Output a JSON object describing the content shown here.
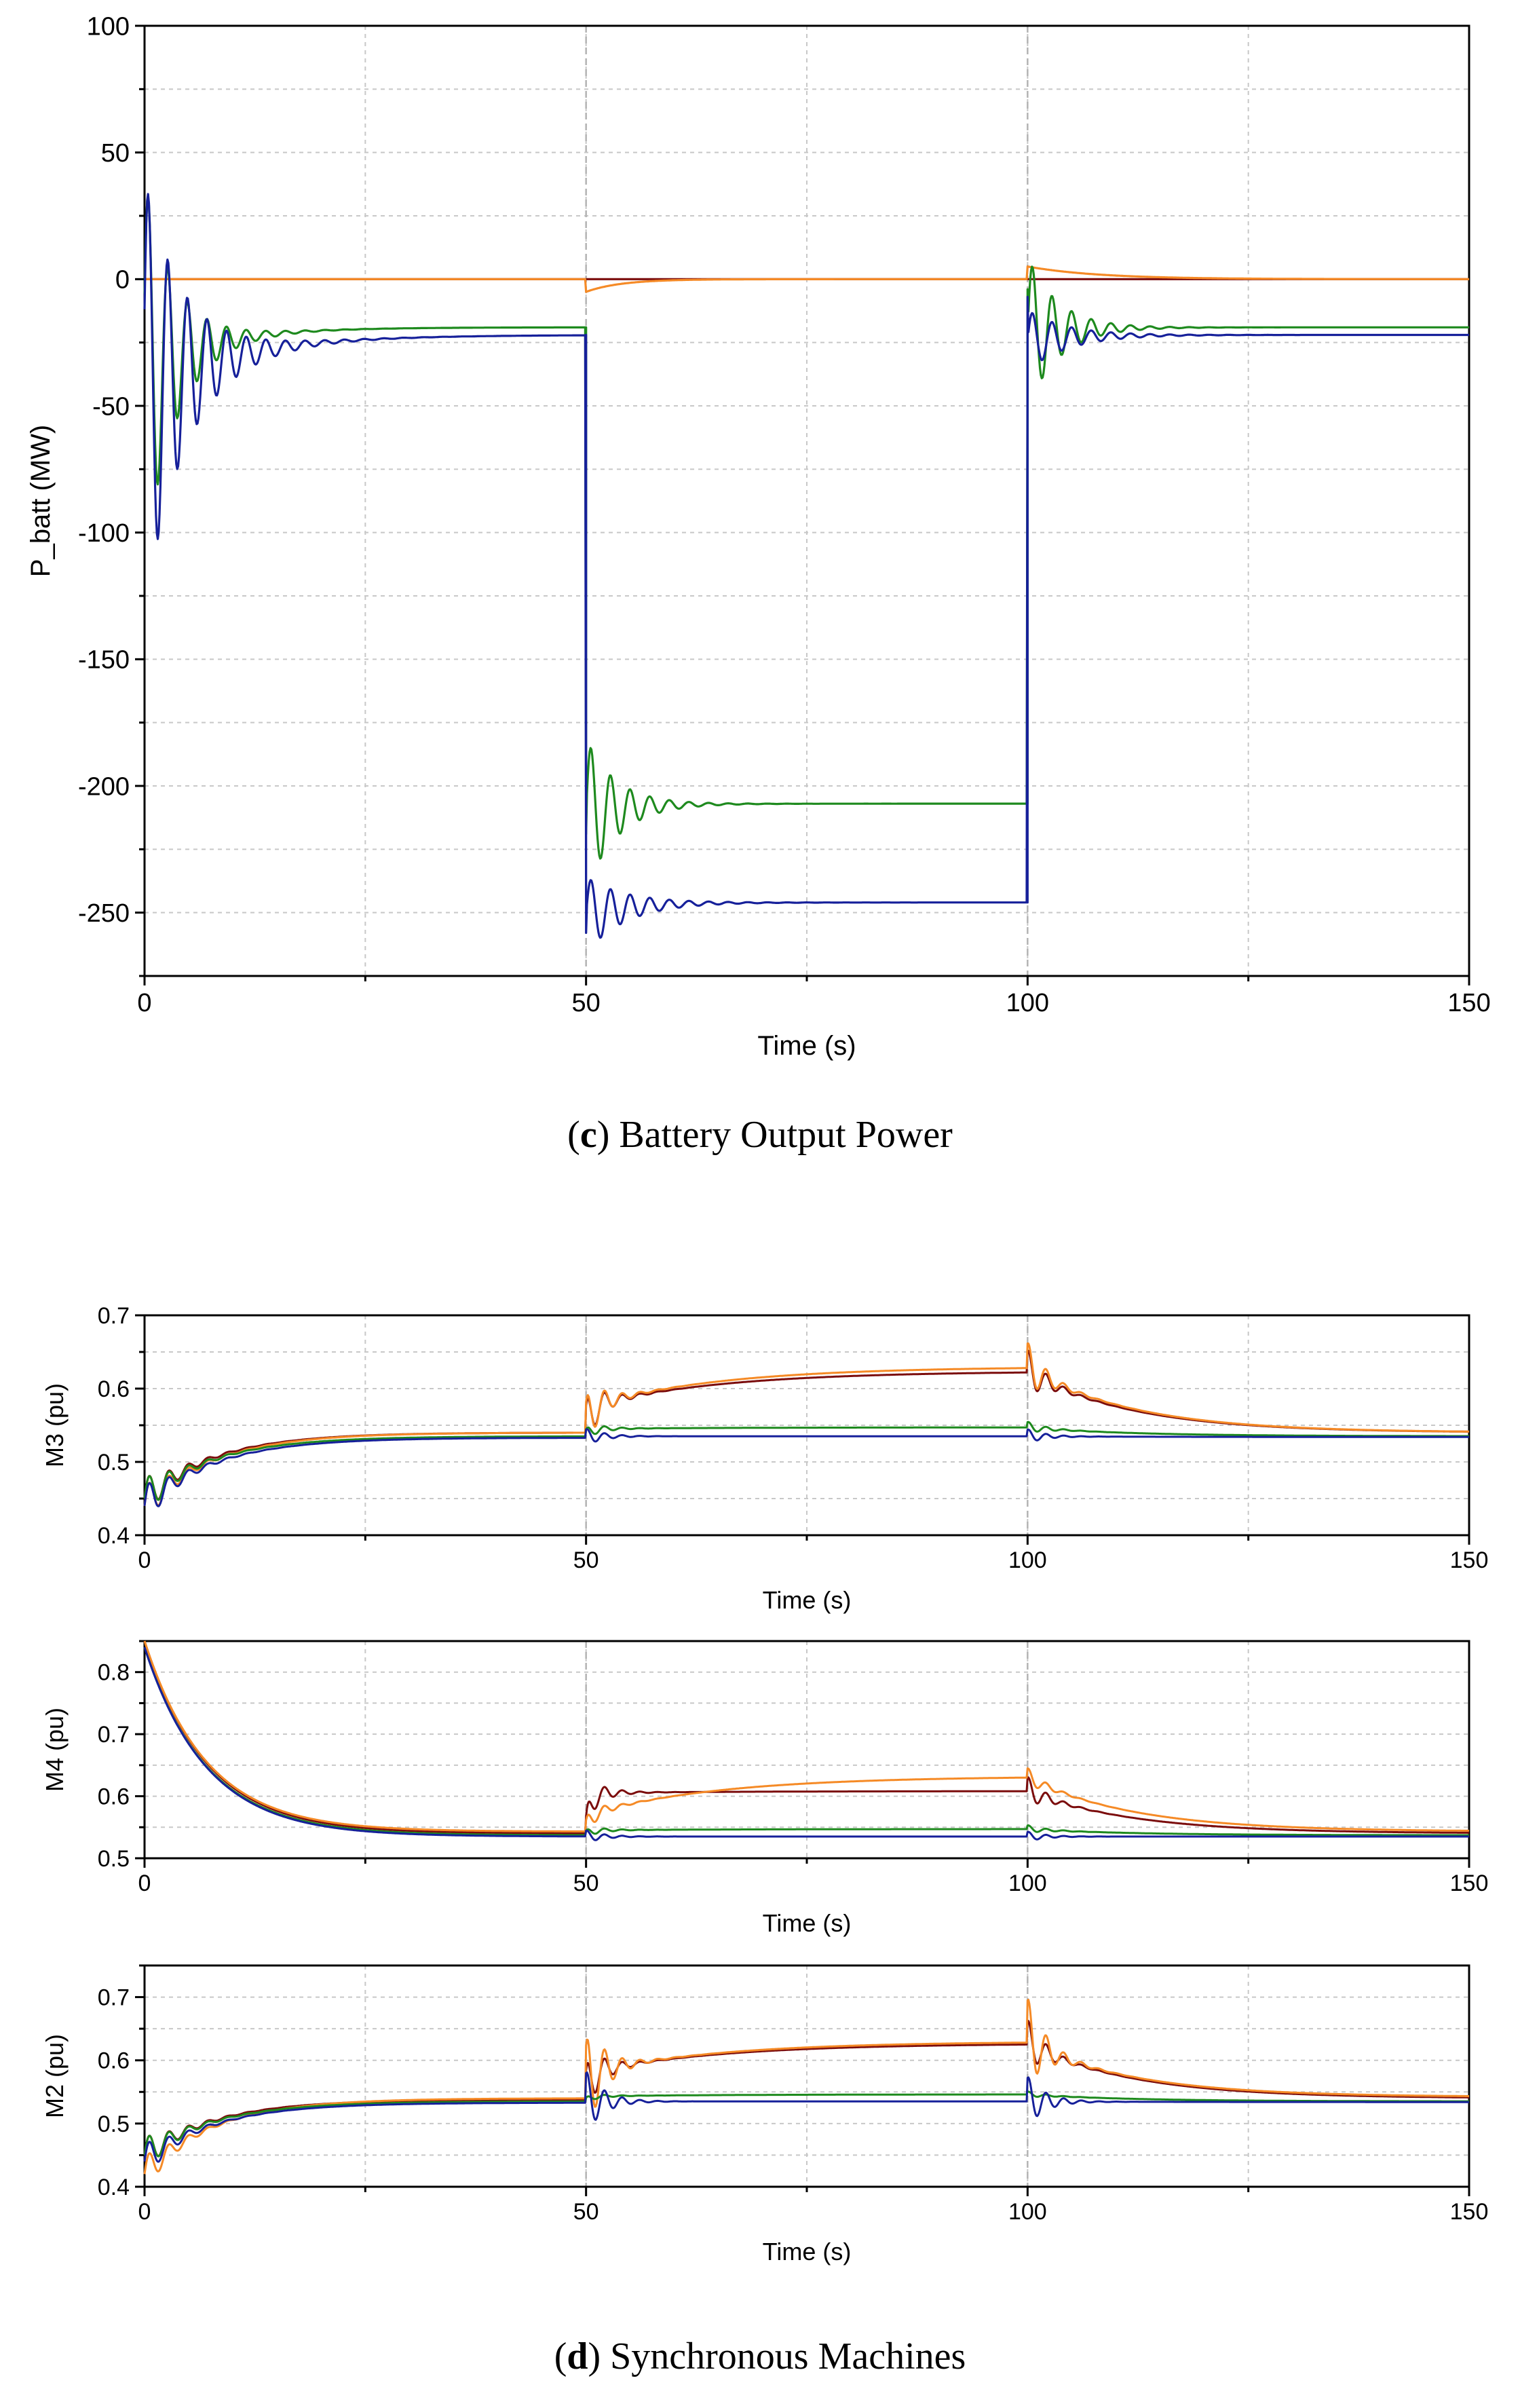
{
  "captions": {
    "c": {
      "letter": "c",
      "text": " Battery Output Power"
    },
    "d": {
      "letter": "d",
      "text": " Synchronous Machines"
    }
  },
  "colors": {
    "dark_red": "#7b0c0c",
    "orange": "#f58a26",
    "green": "#1e8a1e",
    "blue": "#16209a",
    "grid": "#c8c8c8",
    "event_line": "#b4b4b4"
  },
  "chart_data": [
    {
      "id": "battery",
      "type": "line",
      "title": "",
      "xlabel": "Time (s)",
      "ylabel": "P_batt (MW)",
      "xlim": [
        0,
        150
      ],
      "ylim": [
        -275,
        100
      ],
      "xticks": [
        0,
        50,
        100,
        150
      ],
      "yticks": [
        100,
        50,
        0,
        -50,
        -100,
        -150,
        -200,
        -250
      ],
      "event_times": [
        50,
        100
      ],
      "grid": true,
      "series": [
        {
          "name": "dark red",
          "color": "#7b0c0c",
          "base": [
            0,
            0,
            0
          ],
          "decay_tau": 0,
          "osc": null
        },
        {
          "name": "orange",
          "color": "#f58a26",
          "base": [
            0,
            0,
            0
          ],
          "decay_tau": 4,
          "dips": [
            -5,
            5
          ]
        },
        {
          "name": "green",
          "color": "#1e8a1e",
          "start": -35,
          "base": [
            -19,
            -207,
            -19
          ],
          "decay_tau": 8,
          "osc": {
            "amp": [
              75,
              30,
              30
            ],
            "freq": 0.45,
            "tau": 3.5
          }
        },
        {
          "name": "blue",
          "color": "#16209a",
          "start": -45,
          "base": [
            -22,
            -246,
            -22
          ],
          "decay_tau": 10,
          "osc": {
            "amp": [
              85,
              15,
              12
            ],
            "freq": 0.45,
            "tau": 4.5
          }
        }
      ]
    },
    {
      "id": "m3",
      "type": "line",
      "xlabel": "Time (s)",
      "ylabel": "M3 (pu)",
      "xlim": [
        0,
        150
      ],
      "ylim": [
        0.4,
        0.7
      ],
      "xticks": [
        0,
        50,
        100,
        150
      ],
      "yticks": [
        0.7,
        0.6,
        0.5,
        0.4
      ],
      "event_times": [
        50,
        100
      ],
      "grid": true,
      "series": [
        {
          "name": "dark red",
          "color": "#7b0c0c",
          "start": 0.45,
          "plateau_start": 0.575,
          "plateau_end": 0.622,
          "final": 0.54,
          "early": 0.54,
          "osc_amp": 0.04
        },
        {
          "name": "orange",
          "color": "#f58a26",
          "start": 0.44,
          "plateau_start": 0.575,
          "plateau_end": 0.628,
          "final": 0.54,
          "early": 0.54,
          "osc_amp": 0.045
        },
        {
          "name": "green",
          "color": "#1e8a1e",
          "start": 0.45,
          "plateau_start": 0.545,
          "plateau_end": 0.547,
          "final": 0.535,
          "early": 0.535,
          "osc_amp": 0.01
        },
        {
          "name": "blue",
          "color": "#16209a",
          "start": 0.44,
          "plateau_start": 0.535,
          "plateau_end": 0.535,
          "final": 0.534,
          "early": 0.533,
          "osc_amp": 0.012
        }
      ]
    },
    {
      "id": "m4",
      "type": "line",
      "xlabel": "Time (s)",
      "ylabel": "M4 (pu)",
      "xlim": [
        0,
        150
      ],
      "ylim": [
        0.5,
        0.85
      ],
      "xticks": [
        0,
        50,
        100,
        150
      ],
      "yticks": [
        0.8,
        0.7,
        0.6,
        0.5
      ],
      "event_times": [
        50,
        100
      ],
      "grid": true,
      "series": [
        {
          "name": "dark red",
          "color": "#7b0c0c",
          "start": 0.85,
          "plateau_start": 0.605,
          "plateau_end": 0.608,
          "final": 0.54,
          "early": 0.54,
          "osc_amp": 0.03
        },
        {
          "name": "orange",
          "color": "#f58a26",
          "start": 0.85,
          "plateau_start": 0.57,
          "plateau_end": 0.63,
          "final": 0.543,
          "early": 0.543,
          "osc_amp": 0.02
        },
        {
          "name": "green",
          "color": "#1e8a1e",
          "start": 0.84,
          "plateau_start": 0.545,
          "plateau_end": 0.547,
          "final": 0.537,
          "early": 0.537,
          "osc_amp": 0.008
        },
        {
          "name": "blue",
          "color": "#16209a",
          "start": 0.84,
          "plateau_start": 0.535,
          "plateau_end": 0.535,
          "final": 0.535,
          "early": 0.535,
          "osc_amp": 0.01
        }
      ]
    },
    {
      "id": "m2",
      "type": "line",
      "xlabel": "Time (s)",
      "ylabel": "M2 (pu)",
      "xlim": [
        0,
        150
      ],
      "ylim": [
        0.4,
        0.75
      ],
      "xticks": [
        0,
        50,
        100,
        150
      ],
      "yticks": [
        0.7,
        0.6,
        0.5,
        0.4
      ],
      "event_times": [
        50,
        100
      ],
      "grid": true,
      "series": [
        {
          "name": "dark red",
          "color": "#7b0c0c",
          "start": 0.45,
          "plateau_start": 0.58,
          "plateau_end": 0.625,
          "final": 0.54,
          "early": 0.538,
          "osc_amp": 0.05
        },
        {
          "name": "orange",
          "color": "#f58a26",
          "start": 0.42,
          "plateau_start": 0.58,
          "plateau_end": 0.628,
          "final": 0.542,
          "early": 0.54,
          "osc_amp": 0.09
        },
        {
          "name": "green",
          "color": "#1e8a1e",
          "start": 0.45,
          "plateau_start": 0.543,
          "plateau_end": 0.546,
          "final": 0.535,
          "early": 0.535,
          "osc_amp": 0.006
        },
        {
          "name": "blue",
          "color": "#16209a",
          "start": 0.44,
          "plateau_start": 0.535,
          "plateau_end": 0.535,
          "final": 0.534,
          "early": 0.533,
          "osc_amp": 0.05
        }
      ]
    }
  ]
}
